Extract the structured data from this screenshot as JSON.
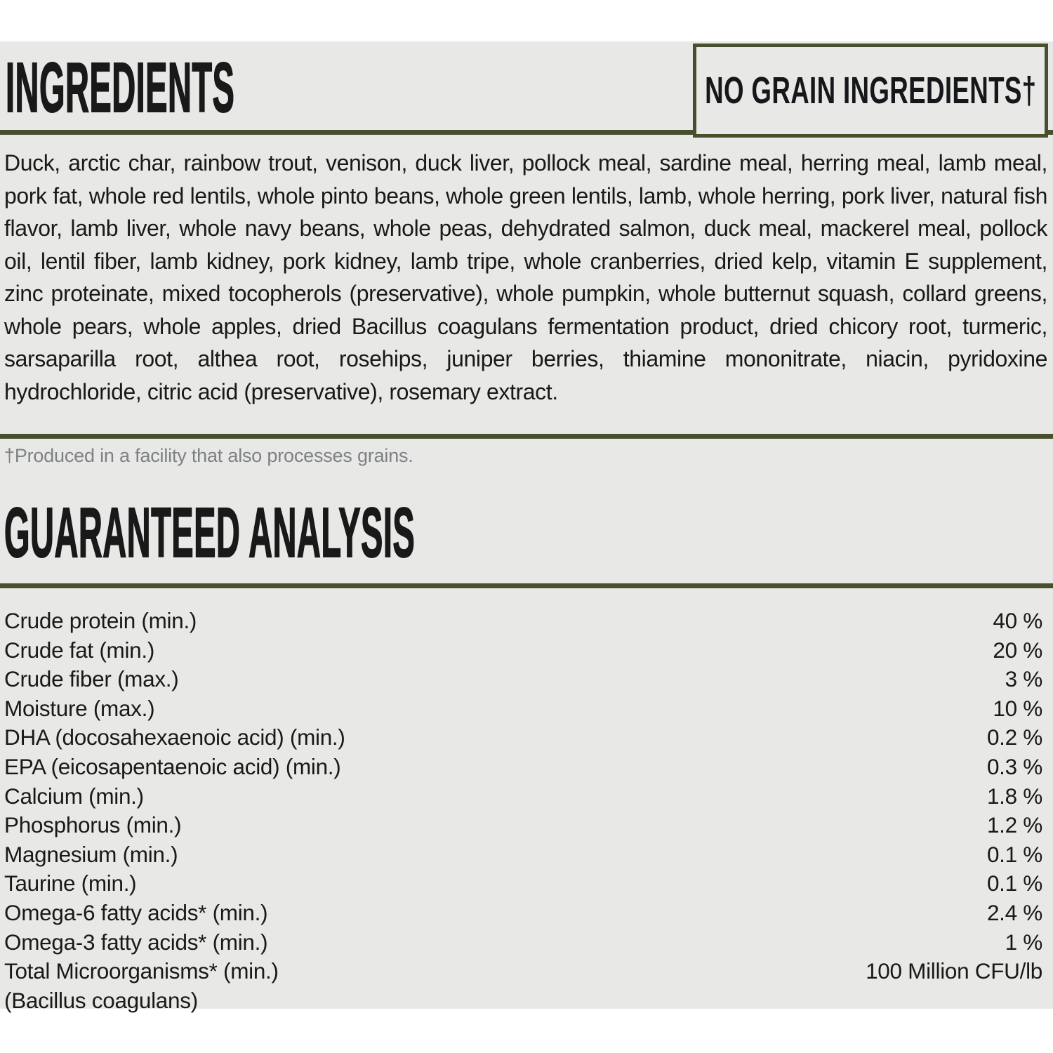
{
  "colors": {
    "page_background": "#ffffff",
    "label_background": "#e8e9e6",
    "accent": "#46502d",
    "text": "#191919",
    "muted": "#7d8184"
  },
  "ingredients_section": {
    "title": "INGREDIENTS",
    "badge": "NO GRAIN INGREDIENTS†",
    "body": "Duck, arctic char, rainbow trout, venison, duck liver, pollock meal, sardine meal, herring meal, lamb meal, pork fat, whole red lentils, whole pinto beans, whole green lentils, lamb, whole herring, pork liver, natural fish flavor, lamb liver, whole navy beans, whole peas, dehydrated salmon, duck meal, mackerel meal, pollock oil, lentil fiber, lamb kidney, pork kidney, lamb tripe, whole cranberries, dried kelp, vitamin E supplement, zinc proteinate, mixed tocopherols (preservative), whole pumpkin, whole butternut squash, collard greens, whole pears, whole apples, dried Bacillus coagulans fermentation product, dried chicory root, turmeric, sarsaparilla root, althea root, rosehips, juniper berries, thiamine mononitrate, niacin, pyridoxine hydrochloride, citric acid (preservative), rosemary extract.",
    "footnote": "†Produced in a facility that also processes grains."
  },
  "analysis_section": {
    "title": "GUARANTEED ANALYSIS",
    "rows": [
      {
        "label": "Crude protein (min.)",
        "value": "40 %"
      },
      {
        "label": "Crude fat (min.)",
        "value": "20 %"
      },
      {
        "label": "Crude fiber (max.)",
        "value": "3 %"
      },
      {
        "label": "Moisture (max.)",
        "value": "10 %"
      },
      {
        "label": "DHA (docosahexaenoic acid) (min.)",
        "value": "0.2 %"
      },
      {
        "label": "EPA (eicosapentaenoic acid) (min.)",
        "value": "0.3 %"
      },
      {
        "label": "Calcium (min.)",
        "value": "1.8 %"
      },
      {
        "label": "Phosphorus (min.)",
        "value": "1.2 %"
      },
      {
        "label": "Magnesium (min.)",
        "value": "0.1 %"
      },
      {
        "label": "Taurine (min.)",
        "value": "0.1 %"
      },
      {
        "label": "Omega-6 fatty acids* (min.)",
        "value": "2.4 %"
      },
      {
        "label": "Omega-3 fatty acids* (min.)",
        "value": "1 %"
      },
      {
        "label": "Total Microorganisms* (min.)",
        "value": "100 Million CFU/lb"
      },
      {
        "label": "(Bacillus coagulans)",
        "value": ""
      }
    ]
  }
}
